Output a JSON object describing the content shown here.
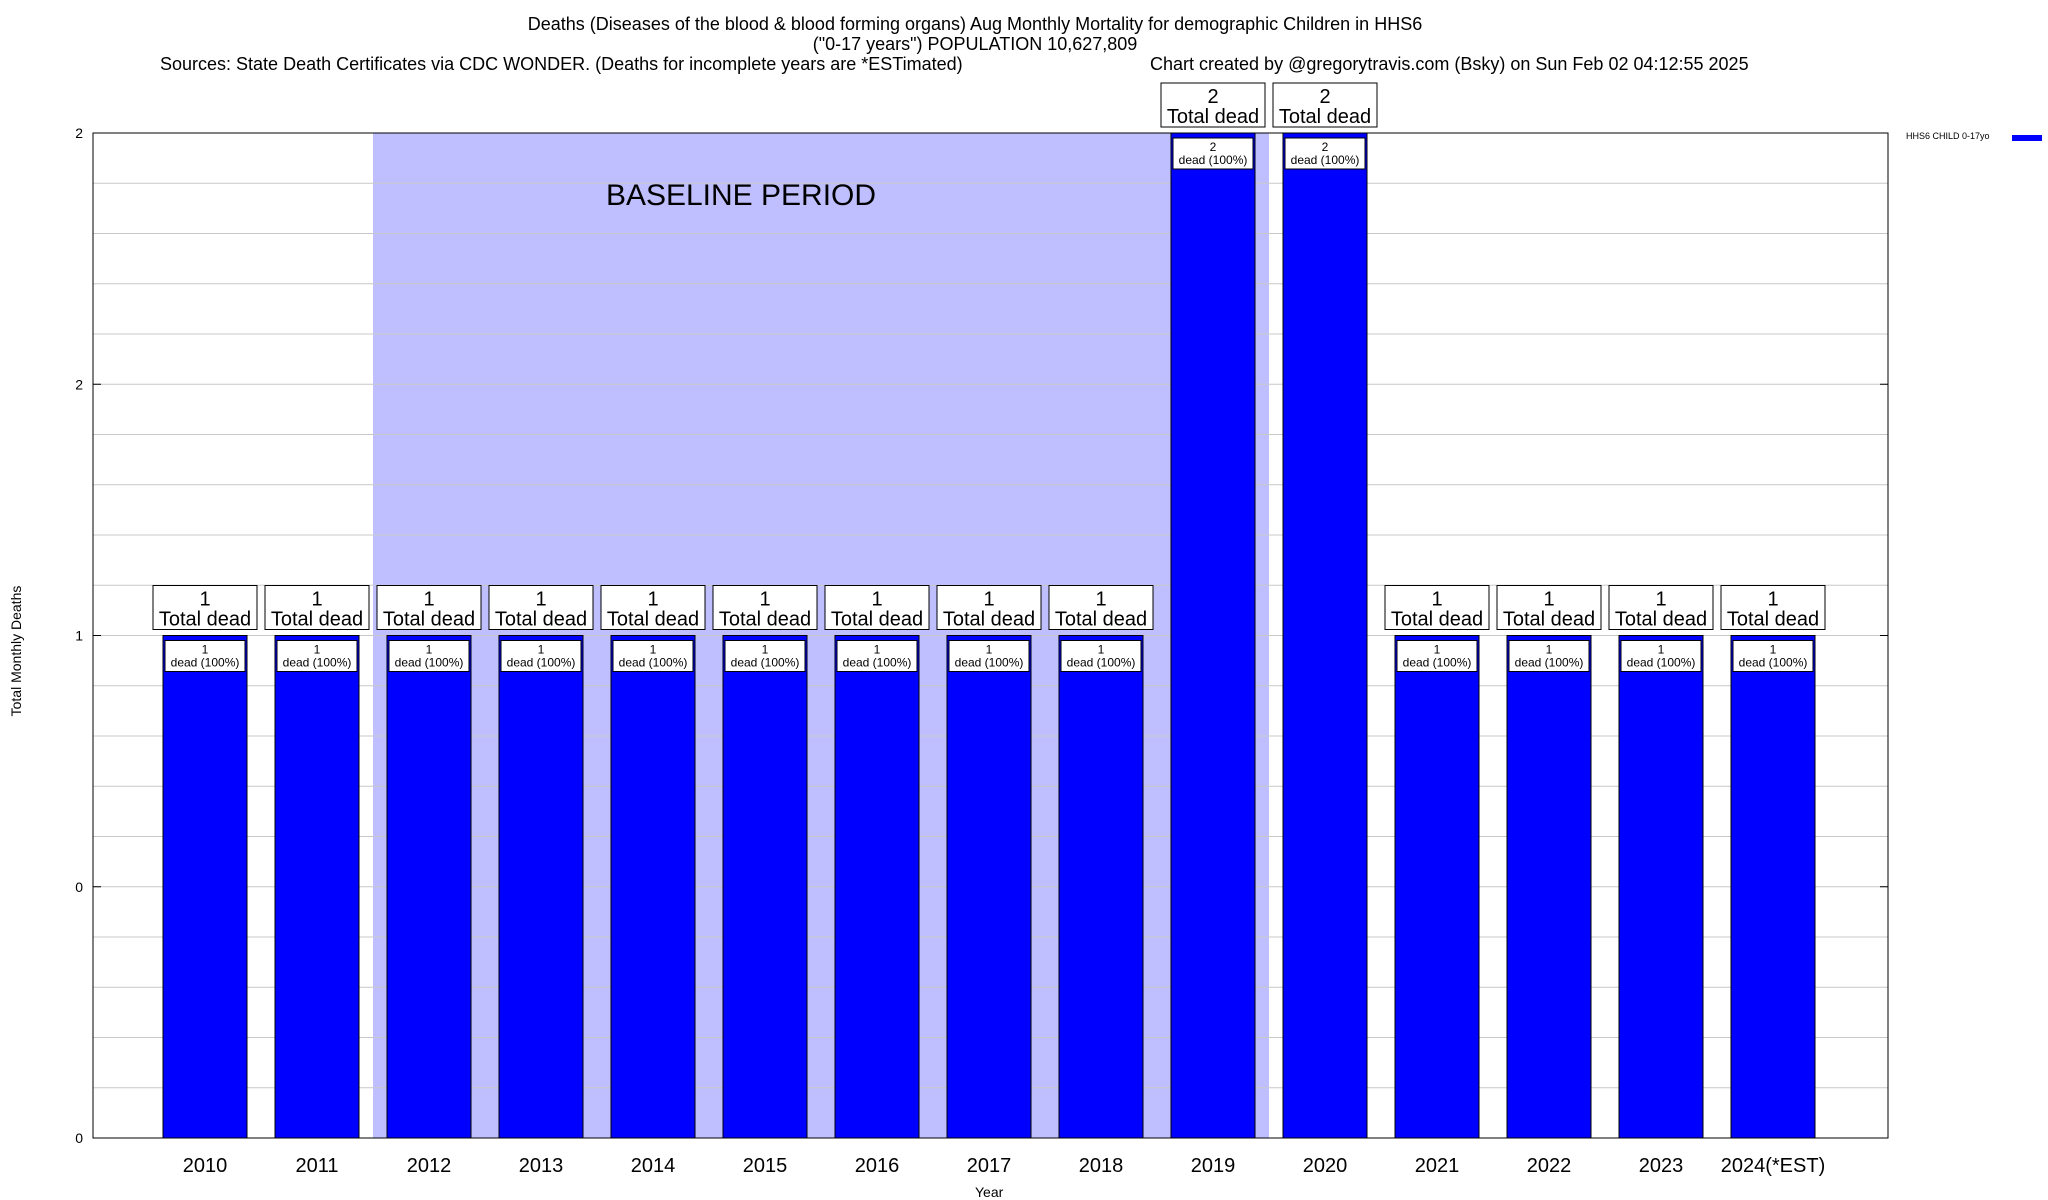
{
  "title": {
    "line1": "Deaths (Diseases of the blood & blood forming organs) Aug Monthly Mortality for demographic Children in HHS6",
    "line2": "(\"0-17 years\") POPULATION 10,627,809",
    "sources": "Sources: State Death Certificates via CDC WONDER. (Deaths for incomplete years are *ESTimated)",
    "credit": "Chart created by @gregorytravis.com (Bsky) on Sun Feb 02 04:12:55 2025"
  },
  "colors": {
    "bar": "#0000ff",
    "baseline_shade": "#bfbfff",
    "grid": "#c8c8c8"
  },
  "chart_data": {
    "type": "bar",
    "categories": [
      "2010",
      "2011",
      "2012",
      "2013",
      "2014",
      "2015",
      "2016",
      "2017",
      "2018",
      "2019",
      "2020",
      "2021",
      "2022",
      "2023",
      "2024(*EST)"
    ],
    "series": [
      {
        "name": "HHS6 CHILD 0-17yo",
        "values": [
          1,
          1,
          1,
          1,
          1,
          1,
          1,
          1,
          1,
          2,
          2,
          1,
          1,
          1,
          1
        ]
      }
    ],
    "top_labels": {
      "number": [
        "1",
        "1",
        "1",
        "1",
        "1",
        "1",
        "1",
        "1",
        "1",
        "2",
        "2",
        "1",
        "1",
        "1",
        "1"
      ],
      "text": "Total dead"
    },
    "inner_labels": {
      "number": [
        "1",
        "1",
        "1",
        "1",
        "1",
        "1",
        "1",
        "1",
        "1",
        "2",
        "2",
        "1",
        "1",
        "1",
        "1"
      ],
      "text": "dead (100%)"
    },
    "baseline_period": {
      "label": "BASELINE PERIOD",
      "from": "2012",
      "to": "2019"
    },
    "ylim": [
      0,
      2
    ],
    "y_tick_labels": [
      "0",
      "0",
      "1",
      "2",
      "2"
    ],
    "xlabel": "Year",
    "ylabel": "Total Monthly Deaths",
    "legend_position": "top-right",
    "grid": true
  }
}
